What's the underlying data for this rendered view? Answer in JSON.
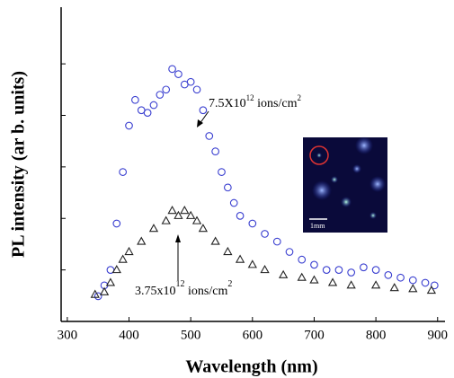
{
  "chart_data": {
    "type": "scatter",
    "xlabel": "Wavelength (nm)",
    "ylabel": "PL intensity (ar b. units)",
    "xlim": [
      290,
      912
    ],
    "xticks": [
      300,
      400,
      500,
      600,
      700,
      800,
      900
    ],
    "ylim": [
      0,
      6.1
    ],
    "yticks": [
      1,
      2,
      3,
      4,
      5
    ],
    "series": [
      {
        "color": "#3a3fd0",
        "marker": "circle",
        "x": [
          350,
          360,
          370,
          380,
          390,
          400,
          410,
          420,
          430,
          440,
          450,
          460,
          470,
          480,
          490,
          500,
          510,
          520,
          530,
          540,
          550,
          560,
          570,
          580,
          600,
          620,
          640,
          660,
          680,
          700,
          720,
          740,
          760,
          780,
          800,
          820,
          840,
          860,
          880,
          895
        ],
        "values": [
          0.49,
          0.7,
          1.0,
          1.9,
          2.9,
          3.8,
          4.3,
          4.1,
          4.05,
          4.2,
          4.4,
          4.5,
          4.9,
          4.8,
          4.6,
          4.65,
          4.5,
          4.1,
          3.6,
          3.3,
          2.9,
          2.6,
          2.3,
          2.05,
          1.9,
          1.7,
          1.55,
          1.35,
          1.2,
          1.1,
          1.0,
          1.0,
          0.95,
          1.05,
          1.0,
          0.9,
          0.85,
          0.8,
          0.75,
          0.7
        ]
      },
      {
        "color": "#222222",
        "marker": "triangle",
        "x": [
          345,
          360,
          370,
          380,
          390,
          400,
          420,
          440,
          460,
          470,
          480,
          490,
          500,
          510,
          520,
          540,
          560,
          580,
          600,
          620,
          650,
          680,
          700,
          730,
          760,
          800,
          830,
          860,
          890
        ],
        "values": [
          0.52,
          0.57,
          0.75,
          1.0,
          1.2,
          1.35,
          1.55,
          1.8,
          1.95,
          2.15,
          2.05,
          2.15,
          2.05,
          1.95,
          1.8,
          1.55,
          1.35,
          1.2,
          1.1,
          1.0,
          0.9,
          0.85,
          0.8,
          0.75,
          0.7,
          0.7,
          0.65,
          0.63,
          0.6
        ]
      }
    ],
    "annotations": [
      {
        "parts": [
          "7.5X10",
          "12",
          " ions/cm",
          "2"
        ]
      },
      {
        "parts": [
          "3.75x10",
          "12",
          " ions/cm",
          "2"
        ]
      }
    ],
    "inset_scale_label": "1mm"
  }
}
